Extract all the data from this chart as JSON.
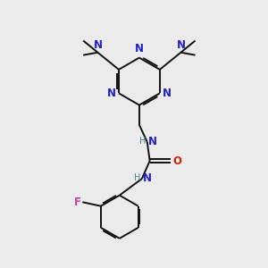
{
  "background_color": "#ebebeb",
  "bond_color": "#111111",
  "N_color": "#2020cc",
  "O_color": "#cc2200",
  "F_color": "#bb44aa",
  "H_color": "#448888",
  "figsize": [
    3.0,
    3.0
  ],
  "dpi": 100,
  "xlim": [
    0,
    10
  ],
  "ylim": [
    0,
    10
  ]
}
